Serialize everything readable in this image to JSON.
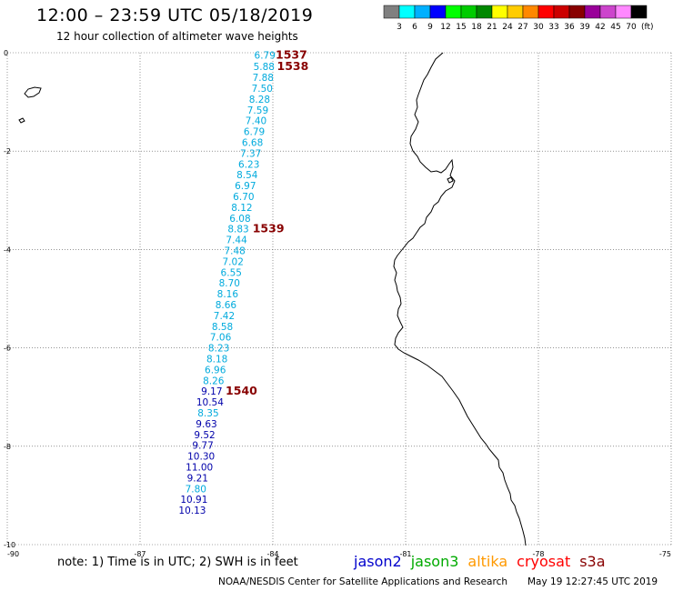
{
  "header": {
    "title": "12:00 – 23:59 UTC 05/18/2019",
    "subtitle": "12 hour collection of altimeter wave heights"
  },
  "colorbar": {
    "colors": [
      "#808080",
      "#00ffff",
      "#00b0ff",
      "#0000ff",
      "#00ff00",
      "#00cc00",
      "#008800",
      "#ffff00",
      "#ffcc00",
      "#ff8800",
      "#ff0000",
      "#cc0000",
      "#880000",
      "#990099",
      "#cc44cc",
      "#ff88ff",
      "#000000"
    ],
    "labels": [
      "3",
      "6",
      "9",
      "12",
      "15",
      "18",
      "21",
      "24",
      "27",
      "30",
      "33",
      "36",
      "39",
      "42",
      "45",
      "70"
    ],
    "unit": "(ft)"
  },
  "axes": {
    "y_ticks": [
      "0",
      "-2",
      "-4",
      "-6",
      "-8",
      "-10"
    ],
    "x_ticks": [
      "-90",
      "-87",
      "-84",
      "-81",
      "-78",
      "-75"
    ]
  },
  "track": {
    "color_cyan": "#00aadd",
    "color_navy": "#0000aa",
    "points": [
      {
        "value": "6.79",
        "lon": -84.18,
        "lat": -0.05,
        "color": "cyan"
      },
      {
        "value": "5.88",
        "lon": -84.2,
        "lat": -0.28,
        "color": "cyan"
      },
      {
        "value": "7.88",
        "lon": -84.22,
        "lat": -0.5,
        "color": "cyan"
      },
      {
        "value": "7.50",
        "lon": -84.24,
        "lat": -0.72,
        "color": "cyan"
      },
      {
        "value": "8.28",
        "lon": -84.3,
        "lat": -0.94,
        "color": "cyan"
      },
      {
        "value": "7.59",
        "lon": -84.34,
        "lat": -1.16,
        "color": "cyan"
      },
      {
        "value": "7.40",
        "lon": -84.38,
        "lat": -1.38,
        "color": "cyan"
      },
      {
        "value": "6.79",
        "lon": -84.42,
        "lat": -1.6,
        "color": "cyan"
      },
      {
        "value": "6.68",
        "lon": -84.46,
        "lat": -1.82,
        "color": "cyan"
      },
      {
        "value": "7.37",
        "lon": -84.5,
        "lat": -2.04,
        "color": "cyan"
      },
      {
        "value": "6.23",
        "lon": -84.54,
        "lat": -2.26,
        "color": "cyan"
      },
      {
        "value": "8.54",
        "lon": -84.58,
        "lat": -2.48,
        "color": "cyan"
      },
      {
        "value": "6.97",
        "lon": -84.62,
        "lat": -2.7,
        "color": "cyan"
      },
      {
        "value": "6.70",
        "lon": -84.66,
        "lat": -2.92,
        "color": "cyan"
      },
      {
        "value": "8.12",
        "lon": -84.7,
        "lat": -3.14,
        "color": "cyan"
      },
      {
        "value": "6.08",
        "lon": -84.74,
        "lat": -3.36,
        "color": "cyan"
      },
      {
        "value": "8.83",
        "lon": -84.78,
        "lat": -3.58,
        "color": "cyan"
      },
      {
        "value": "7.44",
        "lon": -84.82,
        "lat": -3.8,
        "color": "cyan"
      },
      {
        "value": "7.48",
        "lon": -84.86,
        "lat": -4.02,
        "color": "cyan"
      },
      {
        "value": "7.02",
        "lon": -84.9,
        "lat": -4.24,
        "color": "cyan"
      },
      {
        "value": "6.55",
        "lon": -84.94,
        "lat": -4.46,
        "color": "cyan"
      },
      {
        "value": "8.70",
        "lon": -84.98,
        "lat": -4.68,
        "color": "cyan"
      },
      {
        "value": "8.16",
        "lon": -85.02,
        "lat": -4.9,
        "color": "cyan"
      },
      {
        "value": "8.66",
        "lon": -85.06,
        "lat": -5.12,
        "color": "cyan"
      },
      {
        "value": "7.42",
        "lon": -85.1,
        "lat": -5.34,
        "color": "cyan"
      },
      {
        "value": "8.58",
        "lon": -85.14,
        "lat": -5.56,
        "color": "cyan"
      },
      {
        "value": "7.06",
        "lon": -85.18,
        "lat": -5.78,
        "color": "cyan"
      },
      {
        "value": "8.23",
        "lon": -85.22,
        "lat": -6.0,
        "color": "cyan"
      },
      {
        "value": "8.18",
        "lon": -85.26,
        "lat": -6.22,
        "color": "cyan"
      },
      {
        "value": "6.96",
        "lon": -85.3,
        "lat": -6.44,
        "color": "cyan"
      },
      {
        "value": "8.26",
        "lon": -85.34,
        "lat": -6.66,
        "color": "cyan"
      },
      {
        "value": "9.17",
        "lon": -85.38,
        "lat": -6.88,
        "color": "navy"
      },
      {
        "value": "10.54",
        "lon": -85.42,
        "lat": -7.1,
        "color": "navy"
      },
      {
        "value": "8.35",
        "lon": -85.46,
        "lat": -7.32,
        "color": "cyan"
      },
      {
        "value": "9.63",
        "lon": -85.5,
        "lat": -7.54,
        "color": "navy"
      },
      {
        "value": "9.52",
        "lon": -85.54,
        "lat": -7.76,
        "color": "navy"
      },
      {
        "value": "9.77",
        "lon": -85.58,
        "lat": -7.98,
        "color": "navy"
      },
      {
        "value": "10.30",
        "lon": -85.62,
        "lat": -8.2,
        "color": "navy"
      },
      {
        "value": "11.00",
        "lon": -85.66,
        "lat": -8.42,
        "color": "navy"
      },
      {
        "value": "9.21",
        "lon": -85.7,
        "lat": -8.64,
        "color": "navy"
      },
      {
        "value": "7.80",
        "lon": -85.74,
        "lat": -8.86,
        "color": "cyan"
      },
      {
        "value": "10.91",
        "lon": -85.78,
        "lat": -9.08,
        "color": "navy"
      },
      {
        "value": "10.13",
        "lon": -85.82,
        "lat": -9.3,
        "color": "navy"
      }
    ]
  },
  "time_labels": {
    "color": "#880000",
    "items": [
      {
        "text": "1537",
        "lon": -83.58,
        "lat": -0.03
      },
      {
        "text": "1538",
        "lon": -83.55,
        "lat": -0.26
      },
      {
        "text": "1539",
        "lon": -84.1,
        "lat": -3.56
      },
      {
        "text": "1540",
        "lon": -84.71,
        "lat": -6.86
      }
    ]
  },
  "footer": {
    "note": "note:  1) Time is in UTC;  2) SWH is in feet",
    "legend": [
      {
        "name": "jason2",
        "color": "#0000cc"
      },
      {
        "name": "jason3",
        "color": "#00aa00"
      },
      {
        "name": "altika",
        "color": "#ff9900"
      },
      {
        "name": "cryosat",
        "color": "#ff0000"
      },
      {
        "name": "s3a",
        "color": "#880000"
      }
    ],
    "credit": "NOAA/NESDIS Center for Satellite Applications and Research",
    "timestamp": "May 19 12:27:45 UTC 2019"
  }
}
